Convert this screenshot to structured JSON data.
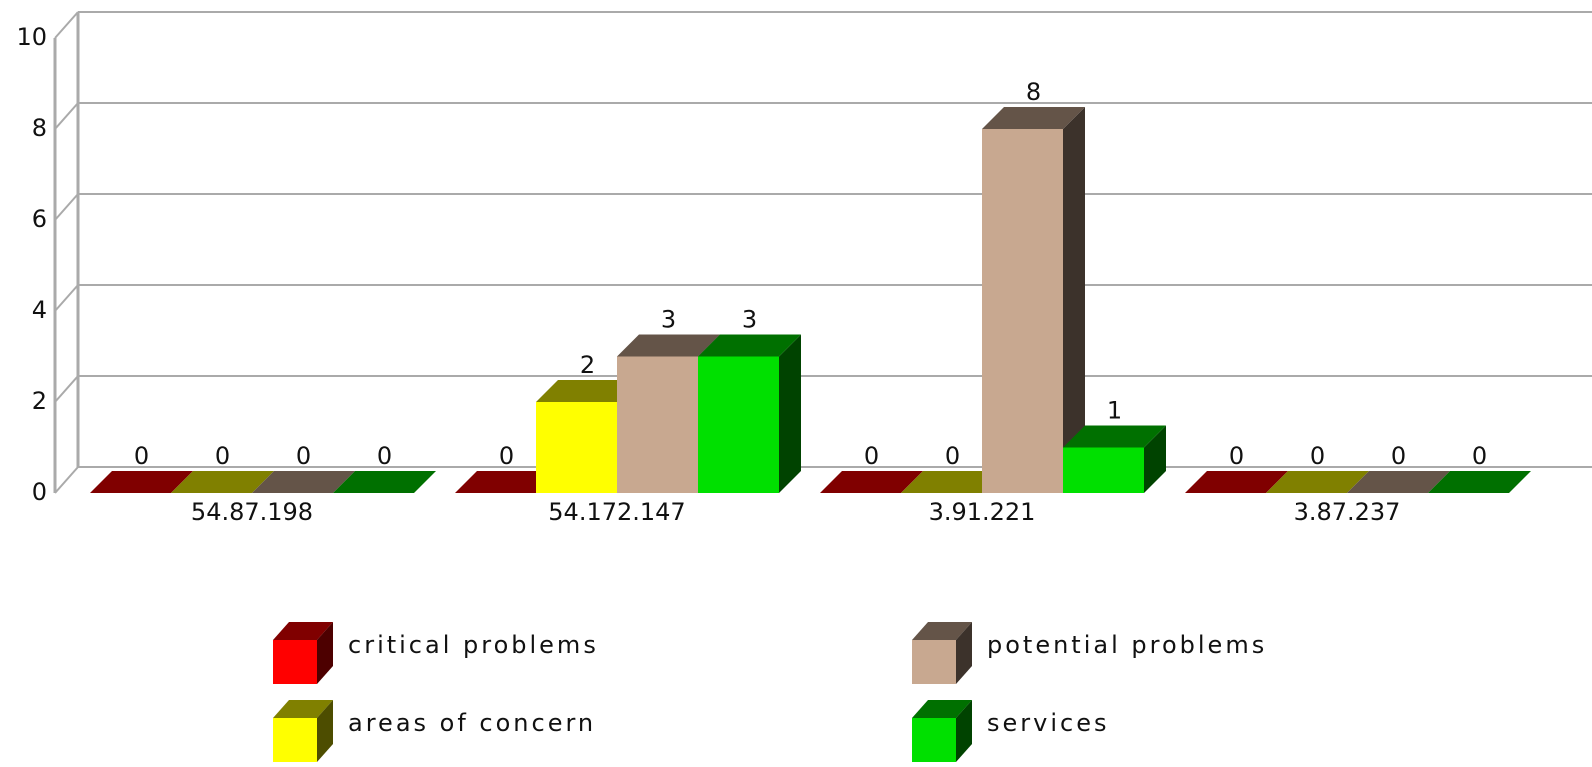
{
  "chart_data": {
    "type": "bar3d",
    "categories": [
      "54.87.198",
      "54.172.147",
      "3.91.221",
      "3.87.237"
    ],
    "series": [
      {
        "name": "critical problems",
        "color": "#ff0000",
        "values": [
          0,
          0,
          0,
          0
        ]
      },
      {
        "name": "areas of concern",
        "color": "#ffff00",
        "values": [
          0,
          2,
          0,
          0
        ]
      },
      {
        "name": "potential problems",
        "color": "#c8a890",
        "values": [
          0,
          3,
          8,
          0
        ]
      },
      {
        "name": "services",
        "color": "#00e000",
        "values": [
          0,
          3,
          1,
          0
        ]
      }
    ],
    "ylim": [
      0,
      10
    ],
    "yticks": [
      0,
      2,
      4,
      6,
      8,
      10
    ],
    "grid": true
  }
}
